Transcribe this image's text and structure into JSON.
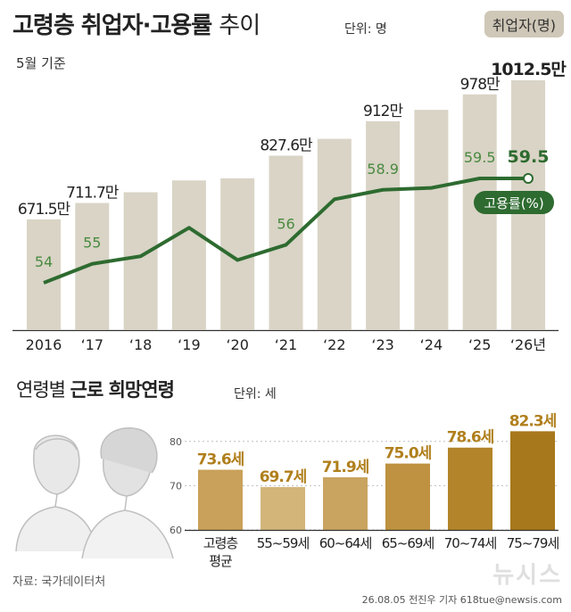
{
  "header": {
    "title_bold": "고령층 취업자·고용률",
    "title_thin": "추이",
    "unit": "단위: 명",
    "legend_label": "취업자(명)",
    "basis": "5월 기준"
  },
  "colors": {
    "bar_top": "#d9d4c6",
    "line": "#2e6b30",
    "line_label": "#4a8a40",
    "bar_bottom": "#b88a2c",
    "legend_bg": "#cfc7b7"
  },
  "chart_data": [
    {
      "type": "bar",
      "categories": [
        "2016",
        "‘17",
        "‘18",
        "‘19",
        "‘20",
        "‘21",
        "‘22",
        "‘23",
        "‘24",
        "‘25",
        "‘26년"
      ],
      "series": [
        {
          "name": "취업자(명)",
          "values": [
            6715000,
            7117000,
            7380000,
            7670000,
            7720000,
            8276000,
            8690000,
            9120000,
            9400000,
            9780000,
            10125000
          ]
        }
      ],
      "value_labels": [
        "671.5만",
        "711.7만",
        "",
        "",
        "",
        "827.6만",
        "",
        "912만",
        "",
        "978만",
        "1012.5만"
      ]
    },
    {
      "type": "line",
      "categories": [
        "2016",
        "‘17",
        "‘18",
        "‘19",
        "‘20",
        "‘21",
        "‘22",
        "‘23",
        "‘24",
        "‘25",
        "‘26년"
      ],
      "series": [
        {
          "name": "고용률(%)",
          "values": [
            54,
            55,
            55.4,
            56.9,
            55.2,
            56,
            58.4,
            58.9,
            59.0,
            59.5,
            59.5
          ]
        }
      ],
      "value_labels": [
        "54",
        "55",
        "",
        "",
        "",
        "56",
        "",
        "58.9",
        "",
        "59.5",
        "59.5"
      ],
      "series_label": "고용률(%)"
    },
    {
      "type": "bar",
      "title": "연령별 근로 희망연령",
      "title_light": "연령별",
      "title_bold": "근로 희망연령",
      "unit": "단위: 세",
      "categories": [
        "고령층\n평균",
        "55~59세",
        "60~64세",
        "65~69세",
        "70~74세",
        "75~79세"
      ],
      "category_lines": [
        [
          "고령층",
          "평균"
        ],
        [
          "55~59세"
        ],
        [
          "60~64세"
        ],
        [
          "65~69세"
        ],
        [
          "70~74세"
        ],
        [
          "75~79세"
        ]
      ],
      "values": [
        73.6,
        69.7,
        71.9,
        75.0,
        78.6,
        82.3
      ],
      "value_labels": [
        "73.6세",
        "69.7세",
        "71.9세",
        "75.0세",
        "78.6세",
        "82.3세"
      ],
      "ylim": [
        60,
        85
      ],
      "yticks": [
        60,
        70,
        80
      ],
      "grid": true
    }
  ],
  "footer": {
    "source": "자료: 국가데이터처",
    "credit": "26.08.05 전진우 기자 618tue@newsis.com",
    "logo": "뉴시스"
  }
}
